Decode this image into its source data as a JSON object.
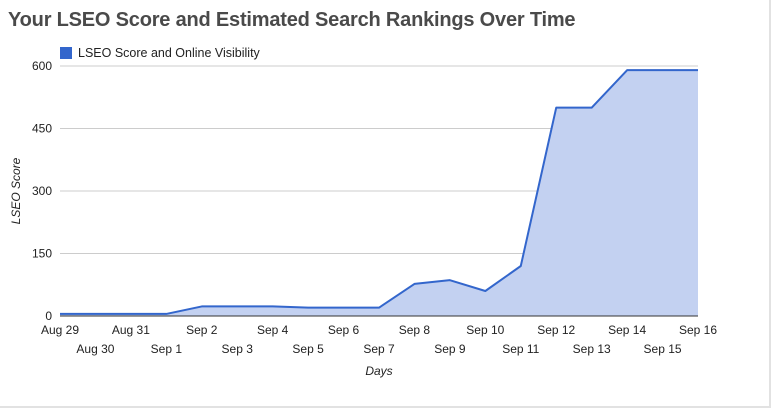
{
  "colors": {
    "line": "#3366cc",
    "fill": "#c3d1f1",
    "grid": "#cccccc",
    "title": "#4a4a4a"
  },
  "chart_data": {
    "type": "area",
    "title": "Your LSEO Score and Estimated Search Rankings Over Time",
    "xlabel": "Days",
    "ylabel": "LSEO Score",
    "ylim": [
      0,
      600
    ],
    "yticks": [
      "0",
      "150",
      "300",
      "450",
      "600"
    ],
    "grid": true,
    "legend_position": "top-left",
    "categories": [
      "Aug 29",
      "Aug 30",
      "Aug 31",
      "Sep 1",
      "Sep 2",
      "Sep 3",
      "Sep 4",
      "Sep 5",
      "Sep 6",
      "Sep 7",
      "Sep 8",
      "Sep 9",
      "Sep 10",
      "Sep 11",
      "Sep 12",
      "Sep 13",
      "Sep 14",
      "Sep 15",
      "Sep 16"
    ],
    "series": [
      {
        "name": "LSEO Score and Online Visibility",
        "values": [
          5,
          5,
          5,
          5,
          23,
          23,
          23,
          20,
          20,
          20,
          77,
          86,
          60,
          120,
          500,
          500,
          590,
          590,
          590
        ]
      }
    ]
  }
}
